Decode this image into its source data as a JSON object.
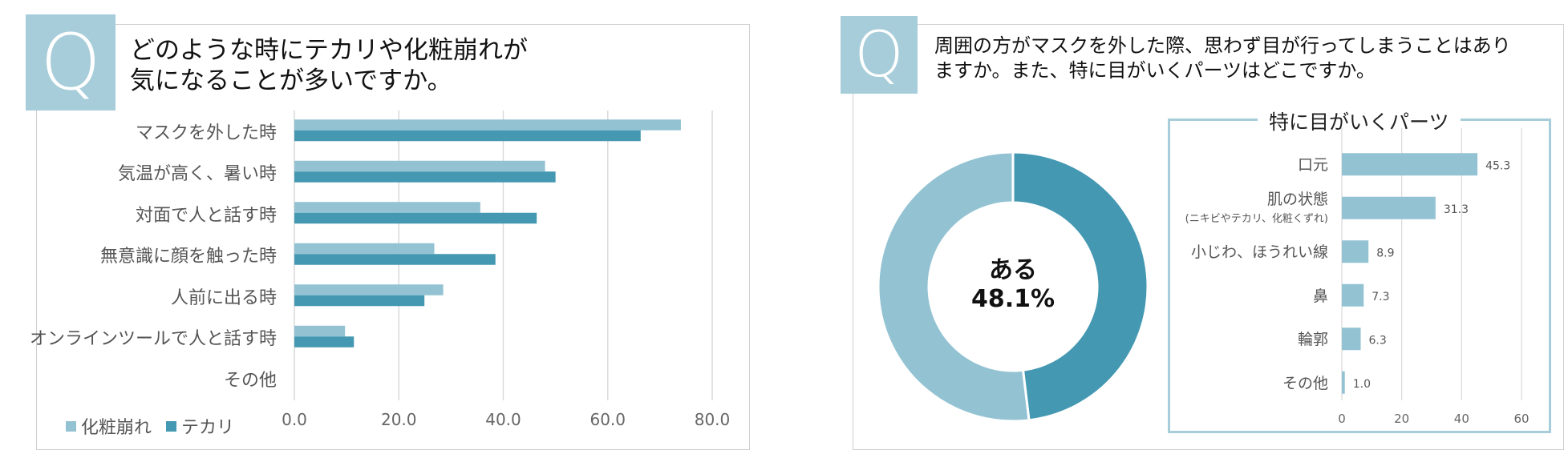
{
  "left_panel": {
    "badge": "Q",
    "title_lines": [
      "どのような時にテカリや化粧崩れが",
      "気になることが多いですか。"
    ]
  },
  "right_panel": {
    "badge": "Q",
    "title_lines": [
      "周囲の方がマスクを外した際、思わず目が行ってしまうことはあり",
      "ますか。また、特に目がいくパーツはどこですか。"
    ],
    "donut_label": "ある",
    "donut_value": "48.1%",
    "parts_title": "特に目がいくパーツ"
  },
  "colors": {
    "light": "#93c3d3",
    "dark": "#4498b2",
    "grid": "#d9d9d9",
    "badge": "#a6cdd9"
  },
  "chart_data": [
    {
      "type": "bar",
      "orientation": "horizontal",
      "categories": [
        "マスクを外した時",
        "気温が高く、暑い時",
        "対面で人と話す時",
        "無意識に顔を触った時",
        "人前に出る時",
        "オンラインツールで人と話す時",
        "その他"
      ],
      "series": [
        {
          "name": "化粧崩れ",
          "color": "#93c3d3",
          "values": [
            74.0,
            48.0,
            35.6,
            26.8,
            28.5,
            9.7,
            0
          ]
        },
        {
          "name": "テカリ",
          "color": "#4498b2",
          "values": [
            66.3,
            50.0,
            46.4,
            38.5,
            24.9,
            11.4,
            0
          ]
        }
      ],
      "xlim": [
        0,
        80
      ],
      "xticks": [
        "0.0",
        "20.0",
        "40.0",
        "60.0",
        "80.0"
      ],
      "grid": true,
      "legend": "bottom-left"
    },
    {
      "type": "pie",
      "donut": true,
      "slices": [
        {
          "label": "ある",
          "value": 48.1,
          "color": "#4498b2"
        },
        {
          "label": "",
          "value": 51.9,
          "color": "#93c3d3"
        }
      ]
    },
    {
      "type": "bar",
      "orientation": "horizontal",
      "categories": [
        "口元",
        "肌の状態",
        "小じわ、ほうれい線",
        "鼻",
        "輪郭",
        "その他"
      ],
      "category_sublabels": [
        "",
        "(ニキビやテカリ、化粧くずれ)",
        "",
        "",
        "",
        ""
      ],
      "values": [
        45.3,
        31.3,
        8.9,
        7.3,
        6.3,
        1.0
      ],
      "value_labels": [
        "45.3",
        "31.3",
        "8.9",
        "7.3",
        "6.3",
        "1.0"
      ],
      "color": "#93c3d3",
      "xlim": [
        0,
        60
      ],
      "xticks": [
        "0",
        "20",
        "40",
        "60"
      ],
      "grid": true
    }
  ]
}
